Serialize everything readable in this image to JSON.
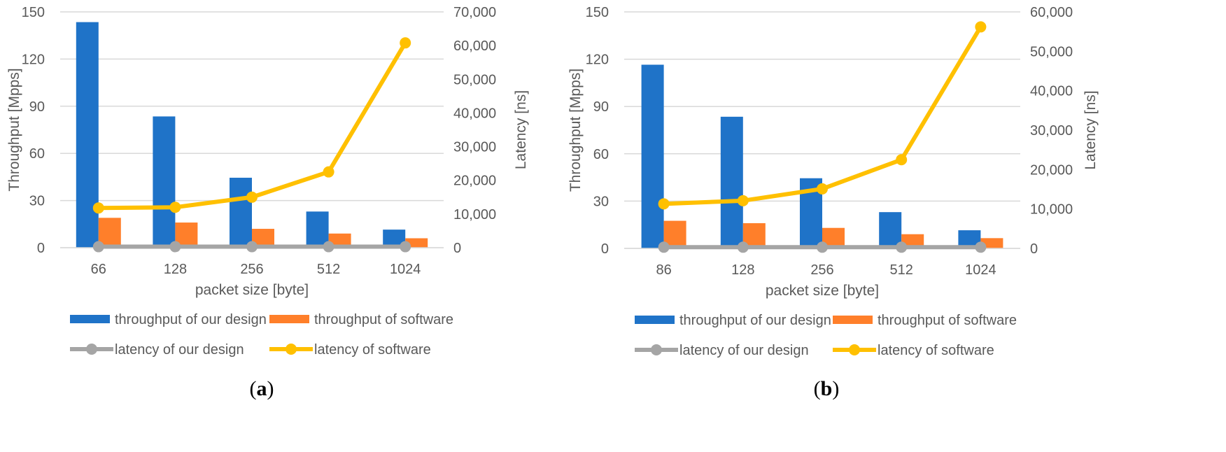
{
  "chart_data": [
    {
      "type": "bar+line",
      "panel_label": "a",
      "categories": [
        "66",
        "128",
        "256",
        "512",
        "1024"
      ],
      "xlabel": "packet size [byte]",
      "ylabel": "Throughput [Mpps]",
      "y2label": "Latency [ns]",
      "ylim": [
        0,
        150
      ],
      "y2lim": [
        0,
        70000
      ],
      "yticks": [
        0,
        30,
        60,
        90,
        120,
        150
      ],
      "y2ticks": [
        0,
        10000,
        20000,
        30000,
        40000,
        50000,
        60000,
        70000
      ],
      "series": [
        {
          "name": "throughput of our design",
          "kind": "bar",
          "axis": "left",
          "color": "#1f73c8",
          "values": [
            143.5,
            83.5,
            44.5,
            23,
            11.5
          ]
        },
        {
          "name": "throughput of software",
          "kind": "bar",
          "axis": "left",
          "color": "#ff7f2a",
          "values": [
            19,
            16,
            12,
            9,
            6
          ]
        },
        {
          "name": "latency of our design",
          "kind": "line",
          "axis": "right",
          "color": "#a5a5a5",
          "values": [
            300,
            300,
            300,
            300,
            300
          ]
        },
        {
          "name": "latency of software",
          "kind": "line",
          "axis": "right",
          "color": "#ffc000",
          "values": [
            11800,
            12000,
            15000,
            22500,
            60800
          ]
        }
      ]
    },
    {
      "type": "bar+line",
      "panel_label": "b",
      "categories": [
        "86",
        "128",
        "256",
        "512",
        "1024"
      ],
      "xlabel": "packet size [byte]",
      "ylabel": "Throughput [Mpps]",
      "y2label": "Latency [ns]",
      "ylim": [
        0,
        150
      ],
      "y2lim": [
        0,
        60000
      ],
      "yticks": [
        0,
        30,
        60,
        90,
        120,
        150
      ],
      "y2ticks": [
        0,
        10000,
        20000,
        30000,
        40000,
        50000,
        60000
      ],
      "series": [
        {
          "name": "throughput of our design",
          "kind": "bar",
          "axis": "left",
          "color": "#1f73c8",
          "values": [
            116.5,
            83.5,
            44.5,
            23,
            11.5
          ]
        },
        {
          "name": "throughput of software",
          "kind": "bar",
          "axis": "left",
          "color": "#ff7f2a",
          "values": [
            17.5,
            16,
            13,
            9,
            6.5
          ]
        },
        {
          "name": "latency of our design",
          "kind": "line",
          "axis": "right",
          "color": "#a5a5a5",
          "values": [
            300,
            300,
            300,
            300,
            300
          ]
        },
        {
          "name": "latency of software",
          "kind": "line",
          "axis": "right",
          "color": "#ffc000",
          "values": [
            11300,
            12100,
            15100,
            22500,
            56200
          ]
        }
      ]
    }
  ]
}
